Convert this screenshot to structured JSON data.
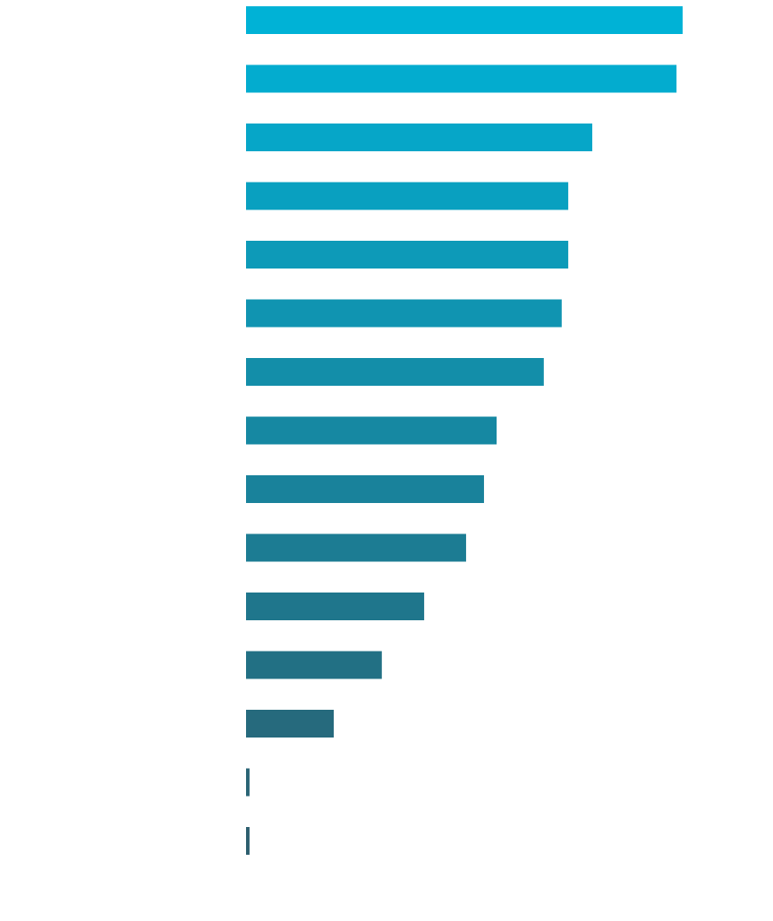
{
  "chart_data": {
    "type": "barh",
    "values": [
      100,
      98.6,
      79.3,
      73.8,
      73.8,
      72.3,
      68.2,
      57.4,
      54.5,
      50.4,
      40.8,
      31.1,
      20.1,
      0.8,
      0.8
    ],
    "colors": [
      "#00b2d6",
      "#03accf",
      "#06a6c8",
      "#09a0c0",
      "#0d9ab8",
      "#1094b1",
      "#138ea9",
      "#1688a2",
      "#19829b",
      "#1c7c93",
      "#1f768c",
      "#227084",
      "#266a7d",
      "#296475",
      "#2c5e6e"
    ],
    "xlim": [
      0,
      100
    ]
  }
}
